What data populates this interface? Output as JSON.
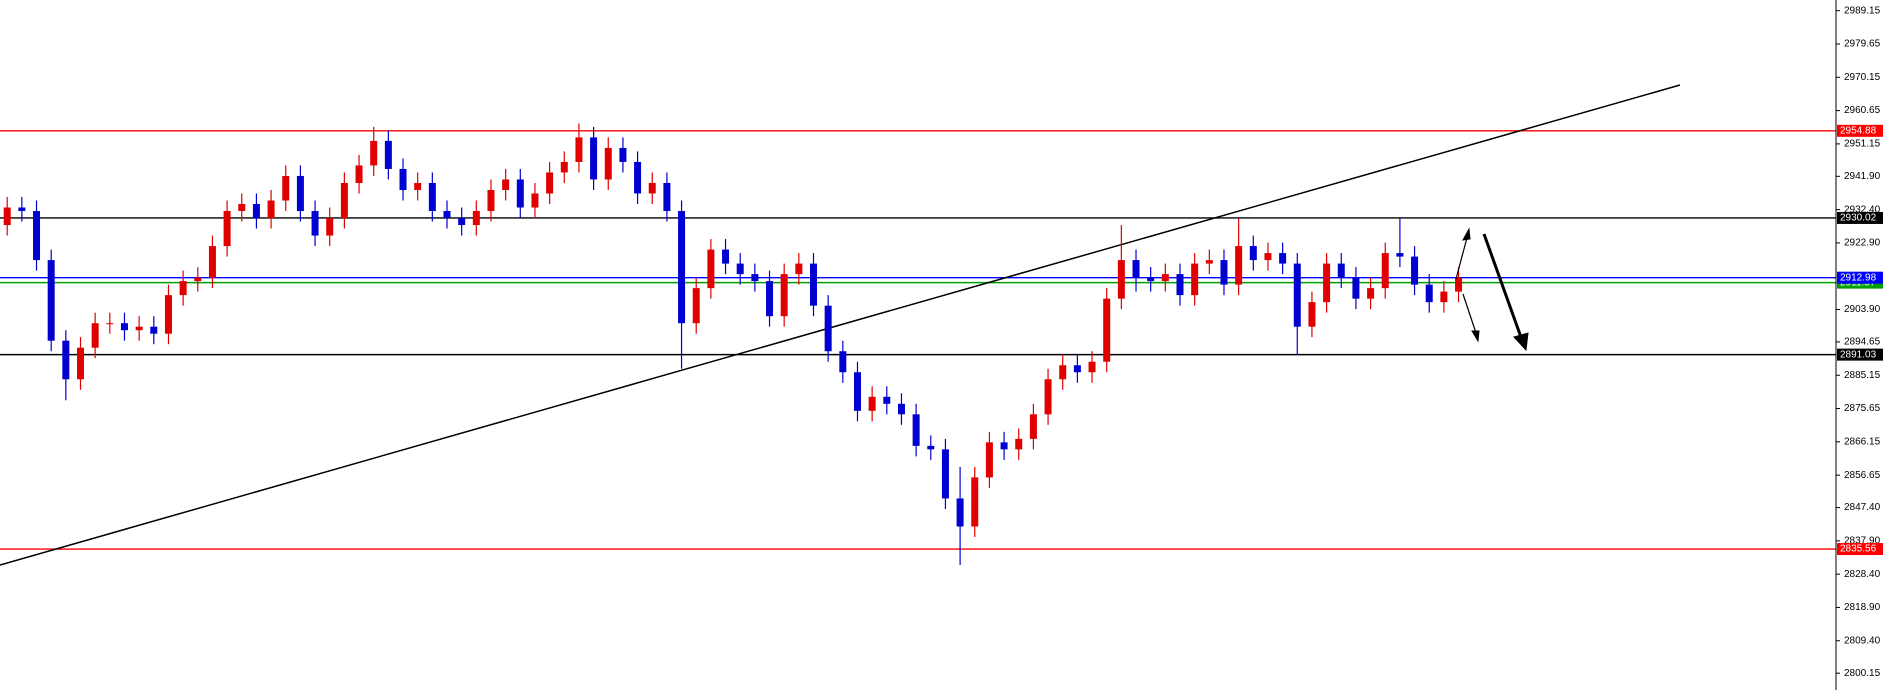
{
  "chart_data": {
    "type": "candlestick",
    "up_color": "#e00000",
    "down_color": "#0000d0",
    "ylim": [
      2795.35,
      2992.2
    ],
    "yticks": [
      2989.15,
      2979.65,
      2970.15,
      2960.65,
      2951.15,
      {
        "value": 2941.9,
        "label": "2941.90"
      },
      {
        "value": 2932.4,
        "label": "2932.40"
      },
      {
        "value": 2922.9,
        "label": "2922.90"
      },
      {
        "value": 2903.9,
        "label": "2903.90"
      },
      2894.65,
      2885.15,
      2875.65,
      2866.15,
      2856.65,
      {
        "value": 2847.4,
        "label": "2847.40"
      },
      {
        "value": 2837.9,
        "label": "2837.90"
      },
      {
        "value": 2828.4,
        "label": "2828.40"
      },
      {
        "value": 2818.9,
        "label": "2818.90"
      },
      {
        "value": 2809.4,
        "label": "2809.40"
      },
      2800.15
    ],
    "levels": [
      {
        "value": 2954.88,
        "color": "#ff0000"
      },
      {
        "value": 2930.02,
        "color": "#000000"
      },
      {
        "value": 2911.57,
        "color": "#00a000"
      },
      {
        "value": 2912.98,
        "color": "#0000ff"
      },
      {
        "value": 2891.03,
        "color": "#000000"
      },
      {
        "value": 2835.56,
        "color": "#ff0000"
      }
    ],
    "open": [
      2928,
      2933,
      2932,
      2918,
      2895,
      2884,
      2893,
      2900,
      2900,
      2898,
      2899,
      2897,
      2908,
      2912,
      2913,
      2922,
      2932,
      2934,
      2930,
      2935,
      2942,
      2932,
      2925,
      2930,
      2940,
      2945,
      2952,
      2944,
      2938,
      2940,
      2932,
      2930,
      2928,
      2932,
      2938,
      2941,
      2933,
      2937,
      2943,
      2946,
      2953,
      2941,
      2950,
      2946,
      2937,
      2940,
      2932,
      2900,
      2910,
      2921,
      2917,
      2914,
      2912,
      2902,
      2914,
      2917,
      2905,
      2892,
      2886,
      2875,
      2879,
      2877,
      2874,
      2865,
      2864,
      2850,
      2842,
      2856,
      2866,
      2864,
      2867,
      2874,
      2884,
      2888,
      2886,
      2889,
      2907,
      2918,
      2913,
      2912,
      2914,
      2908,
      2917,
      2918,
      2911,
      2922,
      2918,
      2920,
      2917,
      2899,
      2906,
      2917,
      2913,
      2907,
      2910,
      2920,
      2919,
      2911,
      2906,
      2909
    ],
    "high": [
      2936,
      2936,
      2935,
      2921,
      2898,
      2896,
      2903,
      2903,
      2903,
      2902,
      2902,
      2911,
      2915,
      2916,
      2925,
      2935,
      2937,
      2937,
      2938,
      2945,
      2945,
      2935,
      2933,
      2943,
      2948,
      2956,
      2955,
      2947,
      2943,
      2943,
      2935,
      2933,
      2935,
      2941,
      2944,
      2944,
      2940,
      2946,
      2949,
      2957,
      2956,
      2953,
      2953,
      2949,
      2943,
      2943,
      2935,
      2913,
      2924,
      2924,
      2920,
      2917,
      2915,
      2917,
      2920,
      2920,
      2908,
      2895,
      2889,
      2882,
      2882,
      2880,
      2877,
      2868,
      2867,
      2859,
      2859,
      2869,
      2869,
      2870,
      2877,
      2887,
      2891,
      2891,
      2892,
      2910,
      2928,
      2921,
      2916,
      2917,
      2917,
      2920,
      2921,
      2921,
      2930,
      2925,
      2923,
      2923,
      2920,
      2909,
      2920,
      2920,
      2916,
      2913,
      2923,
      2930,
      2922,
      2914,
      2912,
      2916
    ],
    "low": [
      2925,
      2929,
      2915,
      2892,
      2878,
      2881,
      2890,
      2897,
      2895,
      2895,
      2894,
      2894,
      2905,
      2909,
      2910,
      2919,
      2929,
      2927,
      2927,
      2932,
      2929,
      2922,
      2922,
      2927,
      2937,
      2942,
      2941,
      2935,
      2935,
      2929,
      2927,
      2925,
      2925,
      2929,
      2935,
      2930,
      2930,
      2934,
      2940,
      2943,
      2938,
      2938,
      2943,
      2934,
      2934,
      2929,
      2887,
      2897,
      2907,
      2914,
      2911,
      2909,
      2899,
      2899,
      2911,
      2902,
      2889,
      2883,
      2872,
      2872,
      2874,
      2871,
      2862,
      2861,
      2847,
      2831,
      2839,
      2853,
      2861,
      2861,
      2864,
      2871,
      2881,
      2883,
      2883,
      2886,
      2904,
      2909,
      2909,
      2909,
      2905,
      2905,
      2914,
      2908,
      2908,
      2915,
      2915,
      2914,
      2891,
      2896,
      2903,
      2910,
      2904,
      2904,
      2907,
      2916,
      2908,
      2903,
      2903,
      2906
    ],
    "close": [
      2933,
      2932,
      2918,
      2895,
      2884,
      2893,
      2900,
      2900,
      2898,
      2899,
      2897,
      2908,
      2912,
      2913,
      2922,
      2932,
      2934,
      2930,
      2935,
      2942,
      2932,
      2925,
      2930,
      2940,
      2945,
      2952,
      2944,
      2938,
      2940,
      2932,
      2930,
      2928,
      2932,
      2938,
      2941,
      2933,
      2937,
      2943,
      2946,
      2953,
      2941,
      2950,
      2946,
      2937,
      2940,
      2932,
      2900,
      2910,
      2921,
      2917,
      2914,
      2912,
      2902,
      2914,
      2917,
      2905,
      2892,
      2886,
      2875,
      2879,
      2877,
      2874,
      2865,
      2864,
      2850,
      2842,
      2856,
      2866,
      2864,
      2867,
      2874,
      2884,
      2888,
      2886,
      2889,
      2907,
      2918,
      2913,
      2912,
      2914,
      2908,
      2917,
      2918,
      2911,
      2922,
      2918,
      2920,
      2917,
      2899,
      2906,
      2917,
      2913,
      2907,
      2910,
      2920,
      2919,
      2911,
      2906,
      2909,
      2913
    ]
  }
}
